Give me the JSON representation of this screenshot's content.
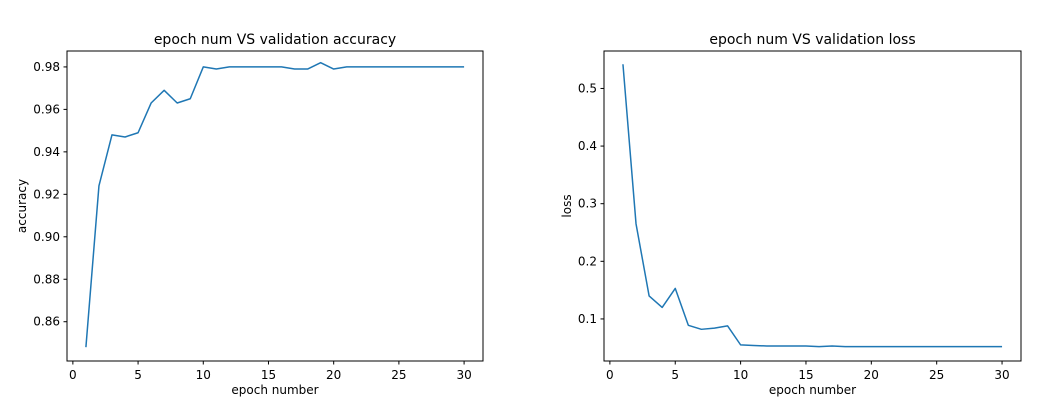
{
  "chart_data": [
    {
      "type": "line",
      "title": "epoch num VS validation accuracy",
      "xlabel": "epoch number",
      "ylabel": "accuracy",
      "xlim": [
        -0.45,
        31.45
      ],
      "ylim": [
        0.8415,
        0.9875
      ],
      "xticks": [
        0,
        5,
        10,
        15,
        20,
        25,
        30
      ],
      "yticks": [
        0.86,
        0.88,
        0.9,
        0.92,
        0.94,
        0.96,
        0.98
      ],
      "ytick_labels": [
        "0.86",
        "0.88",
        "0.90",
        "0.92",
        "0.94",
        "0.96",
        "0.98"
      ],
      "grid": false,
      "color": "#1f77b4",
      "series": [
        {
          "x": [
            1,
            2,
            3,
            4,
            5,
            6,
            7,
            8,
            9,
            10,
            11,
            12,
            13,
            14,
            15,
            16,
            17,
            18,
            19,
            20,
            21,
            22,
            23,
            24,
            25,
            26,
            27,
            28,
            29,
            30
          ],
          "values": [
            0.848,
            0.924,
            0.948,
            0.947,
            0.949,
            0.963,
            0.969,
            0.963,
            0.965,
            0.98,
            0.979,
            0.98,
            0.98,
            0.98,
            0.98,
            0.98,
            0.979,
            0.979,
            0.982,
            0.979,
            0.98,
            0.98,
            0.98,
            0.98,
            0.98,
            0.98,
            0.98,
            0.98,
            0.98,
            0.98
          ]
        }
      ]
    },
    {
      "type": "line",
      "title": "epoch num VS validation loss",
      "xlabel": "epoch number",
      "ylabel": "loss",
      "xlim": [
        -0.45,
        31.45
      ],
      "ylim": [
        0.027,
        0.565
      ],
      "xticks": [
        0,
        5,
        10,
        15,
        20,
        25,
        30
      ],
      "yticks": [
        0.1,
        0.2,
        0.3,
        0.4,
        0.5
      ],
      "ytick_labels": [
        "0.1",
        "0.2",
        "0.3",
        "0.4",
        "0.5"
      ],
      "grid": false,
      "color": "#1f77b4",
      "series": [
        {
          "x": [
            1,
            2,
            3,
            4,
            5,
            6,
            7,
            8,
            9,
            10,
            11,
            12,
            13,
            14,
            15,
            16,
            17,
            18,
            19,
            20,
            21,
            22,
            23,
            24,
            25,
            26,
            27,
            28,
            29,
            30
          ],
          "values": [
            0.542,
            0.265,
            0.14,
            0.12,
            0.153,
            0.089,
            0.082,
            0.084,
            0.088,
            0.055,
            0.054,
            0.053,
            0.053,
            0.053,
            0.053,
            0.052,
            0.053,
            0.052,
            0.052,
            0.052,
            0.052,
            0.052,
            0.052,
            0.052,
            0.052,
            0.052,
            0.052,
            0.052,
            0.052,
            0.052
          ]
        }
      ]
    }
  ]
}
